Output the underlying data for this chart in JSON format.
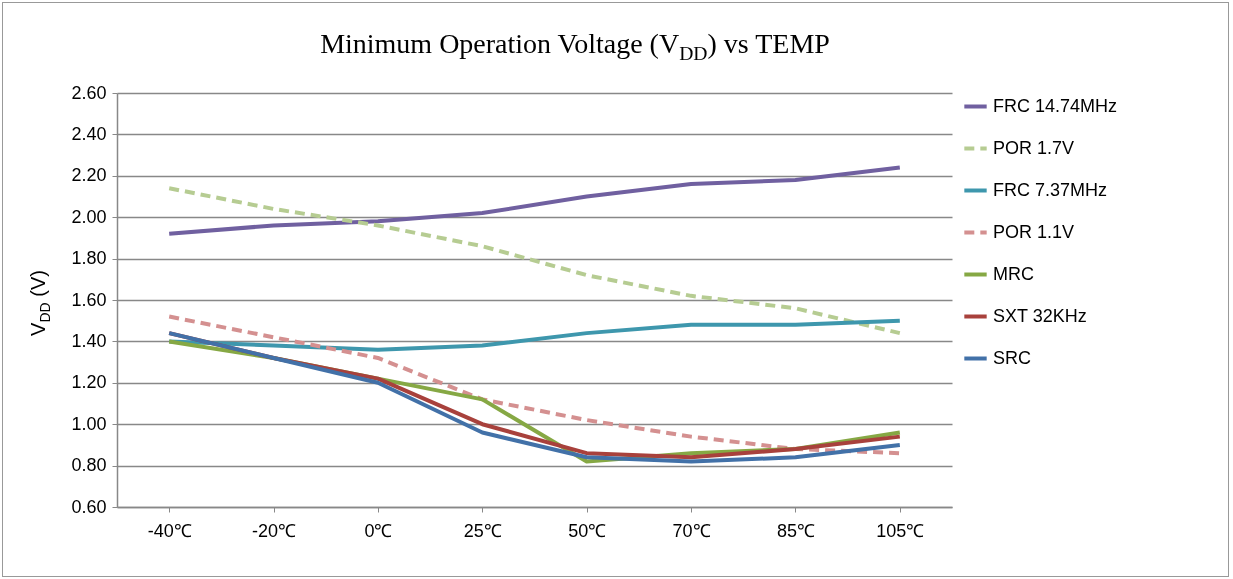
{
  "chart_data": {
    "type": "line",
    "title": "Minimum Operation Voltage (V$_{DD}$)  vs  TEMP",
    "ylabel": "V$_{DD}$ (V)",
    "categories": [
      "-40℃",
      "-20℃",
      "0℃",
      "25℃",
      "50℃",
      "70℃",
      "85℃",
      "105℃"
    ],
    "series": [
      {
        "name": "FRC 14.74MHz",
        "color": "#7060a0",
        "line_style": "solid",
        "values": [
          1.92,
          1.96,
          1.98,
          2.02,
          2.1,
          2.16,
          2.18,
          2.24
        ]
      },
      {
        "name": "POR 1.7V",
        "color": "#b6cc92",
        "line_style": "dashed",
        "values": [
          2.14,
          2.04,
          1.96,
          1.86,
          1.72,
          1.62,
          1.56,
          1.44
        ]
      },
      {
        "name": "FRC 7.37MHz",
        "color": "#3e97ad",
        "line_style": "solid",
        "values": [
          1.4,
          1.38,
          1.36,
          1.38,
          1.44,
          1.48,
          1.48,
          1.5
        ]
      },
      {
        "name": "POR 1.1V",
        "color": "#d49090",
        "line_style": "dashed",
        "values": [
          1.52,
          1.42,
          1.32,
          1.12,
          1.02,
          0.94,
          0.88,
          0.86
        ]
      },
      {
        "name": "MRC",
        "color": "#86a844",
        "line_style": "solid",
        "values": [
          1.4,
          1.32,
          1.22,
          1.12,
          0.82,
          0.86,
          0.88,
          0.96
        ]
      },
      {
        "name": "SXT 32KHz",
        "color": "#a8413c",
        "line_style": "solid",
        "values": [
          1.44,
          1.32,
          1.22,
          1.0,
          0.86,
          0.84,
          0.88,
          0.94
        ]
      },
      {
        "name": "SRC",
        "color": "#4271a8",
        "line_style": "solid",
        "values": [
          1.44,
          1.32,
          1.2,
          0.96,
          0.84,
          0.82,
          0.84,
          0.9
        ]
      }
    ],
    "ylim": [
      0.6,
      2.6
    ],
    "yticks": [
      {
        "value": 0.6,
        "label": "0.60"
      },
      {
        "value": 0.8,
        "label": "0.80"
      },
      {
        "value": 1.0,
        "label": "1.00"
      },
      {
        "value": 1.2,
        "label": "1.20"
      },
      {
        "value": 1.4,
        "label": "1.40"
      },
      {
        "value": 1.6,
        "label": "1.60"
      },
      {
        "value": 1.8,
        "label": "1.80"
      },
      {
        "value": 2.0,
        "label": "2.00"
      },
      {
        "value": 2.2,
        "label": "2.20"
      },
      {
        "value": 2.4,
        "label": "2.40"
      },
      {
        "value": 2.6,
        "label": "2.60"
      }
    ],
    "grid": "y",
    "legend": "right"
  }
}
